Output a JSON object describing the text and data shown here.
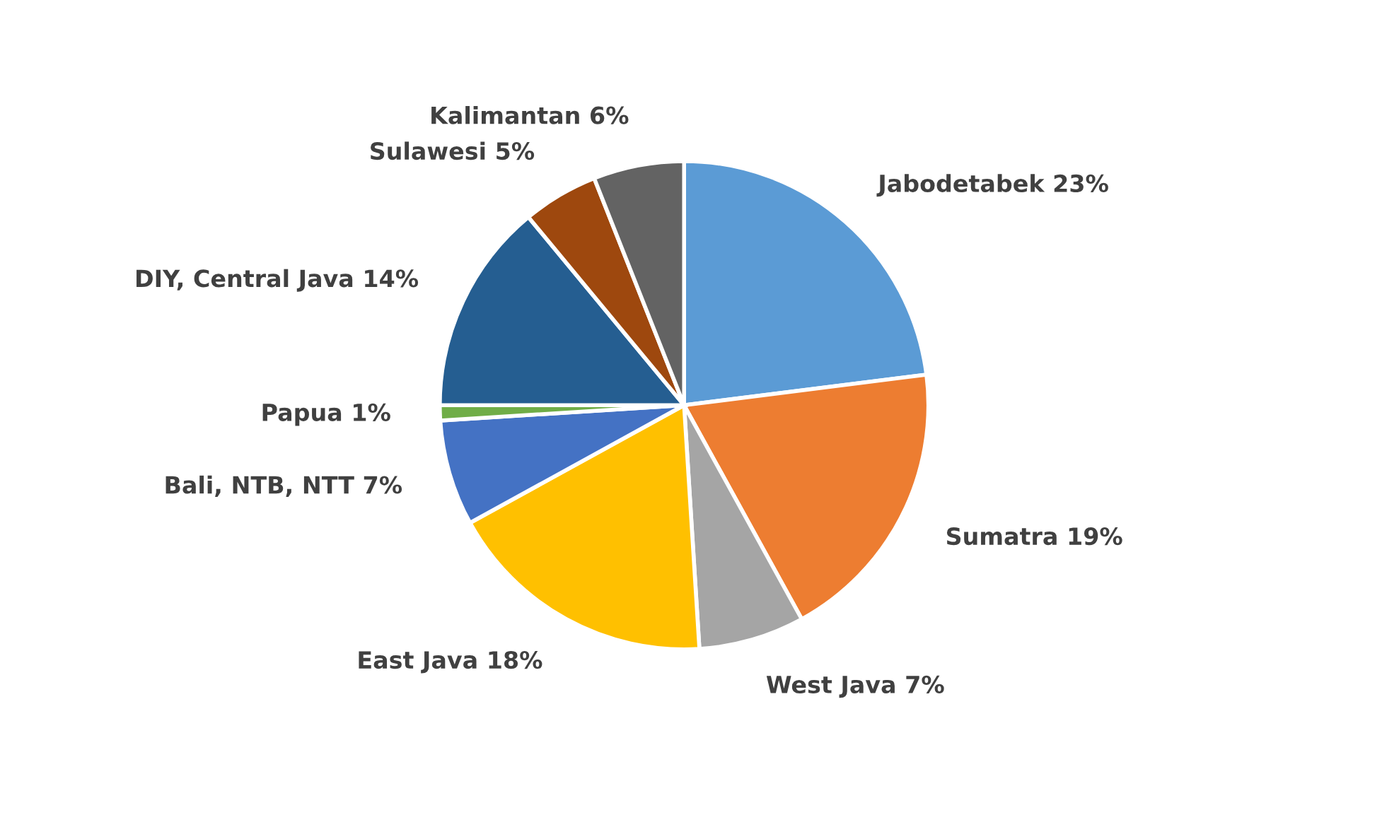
{
  "chart_data": {
    "type": "pie",
    "categories": [
      "Jabodetabek",
      "Sumatra",
      "West Java",
      "East Java",
      "Bali, NTB, NTT",
      "Papua",
      "DIY, Central Java",
      "Sulawesi",
      "Kalimantan"
    ],
    "values": [
      23,
      19,
      7,
      18,
      7,
      1,
      14,
      5,
      6
    ],
    "value_labels": [
      "23%",
      "19%",
      "7%",
      "18%",
      "7%",
      "1%",
      "14%",
      "5%",
      "6%"
    ],
    "colors": [
      "#5b9bd5",
      "#ed7d31",
      "#a5a5a5",
      "#ffc000",
      "#4472c4",
      "#70ad47",
      "#255e91",
      "#9e480e",
      "#636363"
    ],
    "legend": false
  }
}
